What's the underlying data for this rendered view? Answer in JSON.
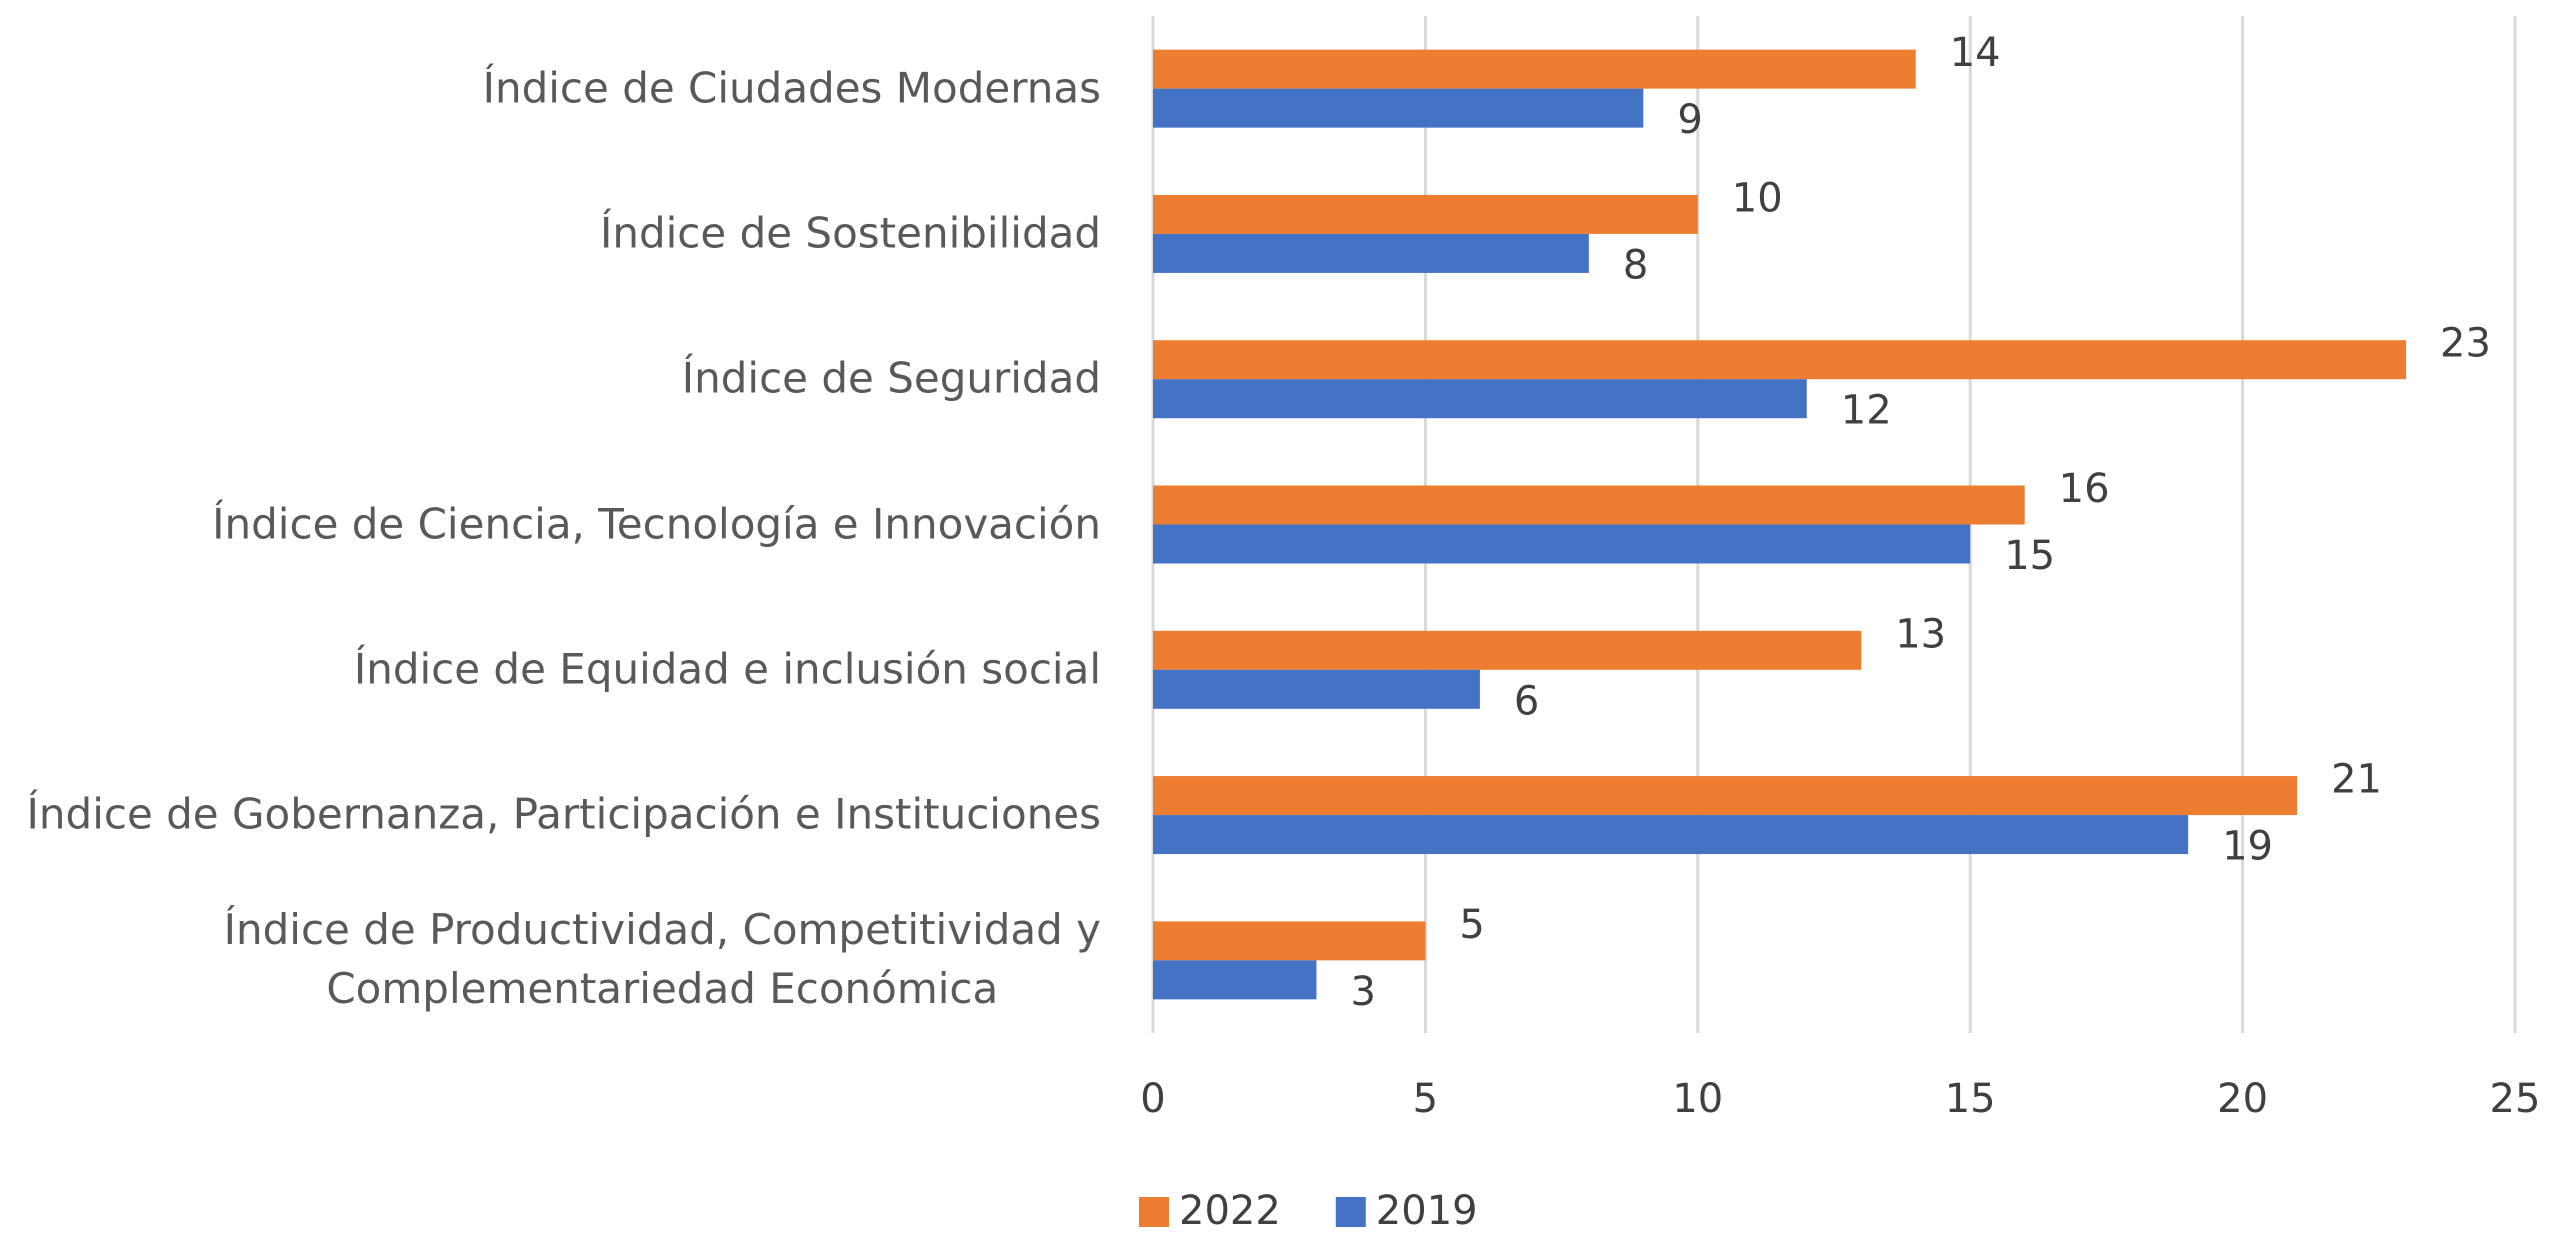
{
  "chart_data": {
    "type": "hbar",
    "categories": [
      "Índice de Ciudades Modernas",
      "Índice de Sostenibilidad",
      "Índice de Seguridad",
      "Índice de Ciencia, Tecnología e Innovación",
      "Índice de Equidad e inclusión social",
      "Índice de Gobernanza, Participación e Instituciones",
      "Índice de Productividad, Competitividad y\nComplementariedad Económica"
    ],
    "series": [
      {
        "name": "2022",
        "color": "#ed7d31",
        "values": [
          14,
          10,
          23,
          16,
          13,
          21,
          5
        ]
      },
      {
        "name": "2019",
        "color": "#4472c4",
        "values": [
          9,
          8,
          12,
          15,
          6,
          19,
          3
        ]
      }
    ],
    "xlim": [
      0,
      25
    ],
    "xticks": [
      0,
      5,
      10,
      15,
      20,
      25
    ],
    "grid": true,
    "legend": "bottom"
  }
}
